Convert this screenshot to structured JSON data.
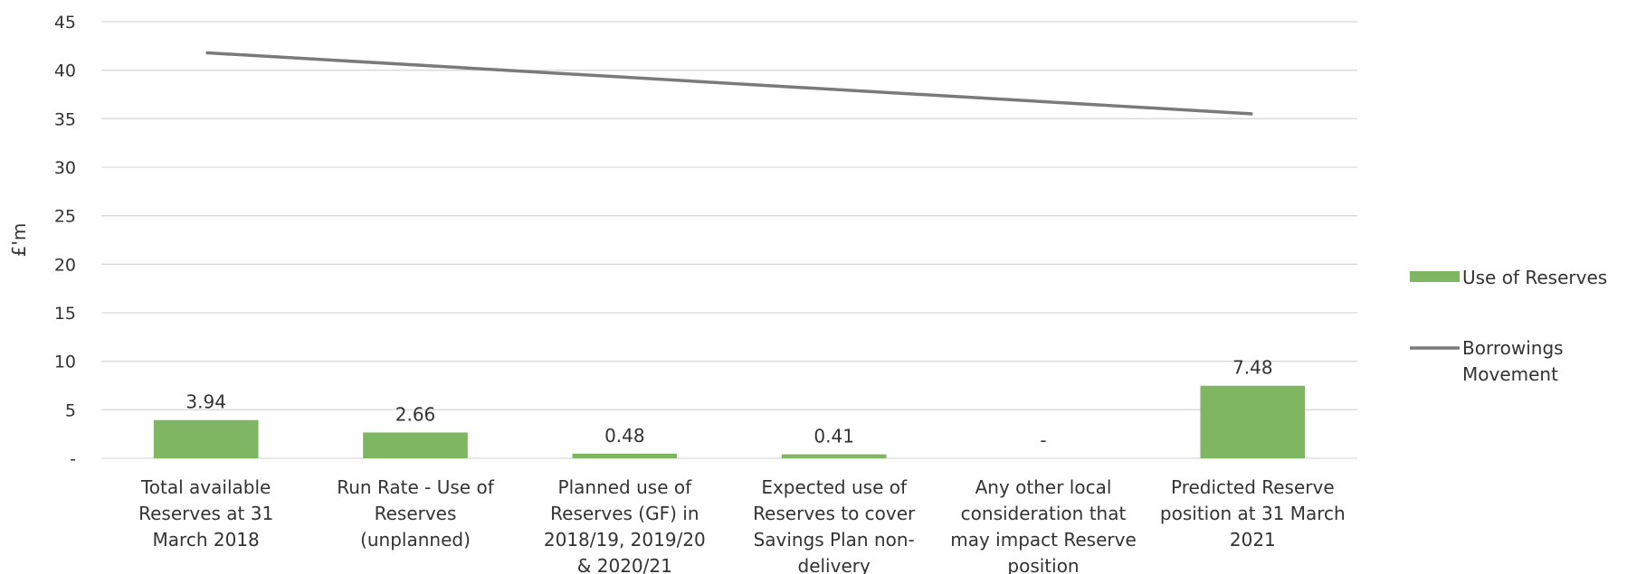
{
  "chart_data": {
    "type": "bar",
    "categories": [
      [
        "Total available",
        "Reserves at 31",
        "March 2018"
      ],
      [
        "Run Rate - Use of",
        "Reserves",
        "(unplanned)"
      ],
      [
        "Planned use of",
        "Reserves (GF) in",
        "2018/19, 2019/20",
        "& 2020/21"
      ],
      [
        "Expected use of",
        "Reserves to cover",
        "Savings Plan non-",
        "delivery"
      ],
      [
        "Any other local",
        "consideration that",
        "may impact Reserve",
        "position"
      ],
      [
        "Predicted Reserve",
        "position at 31 March",
        "2021"
      ]
    ],
    "series": [
      {
        "name": "Use of Reserves",
        "type": "bar",
        "color": "#7fb661",
        "values": [
          3.94,
          2.66,
          0.48,
          0.41,
          0,
          7.48
        ],
        "data_labels": [
          "3.94",
          "2.66",
          "0.48",
          "0.41",
          "-",
          "7.48"
        ]
      },
      {
        "name": "Borrowings Movement",
        "legend_lines": [
          "Borrowings",
          "Movement"
        ],
        "type": "line",
        "color": "#7a7a7a",
        "values": [
          41.8,
          null,
          null,
          null,
          null,
          35.5
        ]
      }
    ],
    "ylabel": "£'m",
    "ylim": [
      0,
      45
    ],
    "yticks": [
      {
        "value": 0,
        "label": "-"
      },
      {
        "value": 5,
        "label": "5"
      },
      {
        "value": 10,
        "label": "10"
      },
      {
        "value": 15,
        "label": "15"
      },
      {
        "value": 20,
        "label": "20"
      },
      {
        "value": 25,
        "label": "25"
      },
      {
        "value": 30,
        "label": "30"
      },
      {
        "value": 35,
        "label": "35"
      },
      {
        "value": 40,
        "label": "40"
      },
      {
        "value": 45,
        "label": "45"
      }
    ],
    "grid": true,
    "legend_position": "right"
  }
}
